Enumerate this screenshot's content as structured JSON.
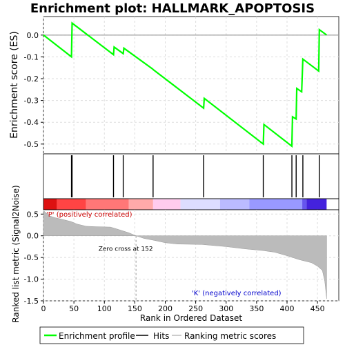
{
  "chart_data": {
    "type": "line",
    "title": "Enrichment plot: HALLMARK_APOPTOSIS",
    "x_label": "Rank in Ordered Dataset",
    "es_panel": {
      "ylabel": "Enrichment score (ES)",
      "ylim": [
        -0.545,
        0.085
      ],
      "yticks": [
        0.0,
        -0.1,
        -0.2,
        -0.3,
        -0.4,
        -0.5
      ],
      "ytick_labels": [
        "0.0",
        "-0.1",
        "-0.2",
        "-0.3",
        "-0.4",
        "-0.5"
      ],
      "grid": true,
      "series": [
        {
          "name": "Enrichment profile",
          "color": "#00ff00",
          "points": [
            [
              0,
              0.0
            ],
            [
              46,
              -0.1
            ],
            [
              47,
              0.055
            ],
            [
              115,
              -0.09
            ],
            [
              116,
              -0.055
            ],
            [
              131,
              -0.085
            ],
            [
              132,
              -0.06
            ],
            [
              179,
              -0.155
            ],
            [
              181,
              -0.16
            ],
            [
              263,
              -0.335
            ],
            [
              264,
              -0.29
            ],
            [
              361,
              -0.5
            ],
            [
              362,
              -0.41
            ],
            [
              408,
              -0.51
            ],
            [
              409,
              -0.375
            ],
            [
              415,
              -0.385
            ],
            [
              416,
              -0.245
            ],
            [
              424,
              -0.26
            ],
            [
              426,
              -0.11
            ],
            [
              452,
              -0.165
            ],
            [
              453,
              0.025
            ],
            [
              465,
              0.0
            ]
          ]
        }
      ]
    },
    "hits": {
      "name": "Hits",
      "positions": [
        46,
        47,
        115,
        131,
        180,
        263,
        361,
        408,
        415,
        426,
        453
      ]
    },
    "ranking_panel": {
      "ylabel": "Ranked list metric (Signal2Noise)",
      "ylim": [
        -1.5,
        0.6
      ],
      "yticks": [
        0.5,
        0.0,
        -0.5,
        -1.0,
        -1.5
      ],
      "ytick_labels": [
        "0.5",
        "0.0",
        "-0.5",
        "-1.0",
        "-1.5"
      ],
      "series_name": "Ranking metric scores",
      "zero_cross_rank": 152,
      "zero_cross_label": "Zero cross at 152",
      "pos_label": "'P' (positively correlated)",
      "neg_label": "'K' (negatively correlated)",
      "profile": [
        [
          0,
          0.58
        ],
        [
          5,
          0.52
        ],
        [
          10,
          0.46
        ],
        [
          18,
          0.42
        ],
        [
          30,
          0.38
        ],
        [
          45,
          0.33
        ],
        [
          55,
          0.27
        ],
        [
          70,
          0.22
        ],
        [
          85,
          0.21
        ],
        [
          110,
          0.2
        ],
        [
          120,
          0.16
        ],
        [
          140,
          0.07
        ],
        [
          152,
          0.0
        ],
        [
          165,
          -0.06
        ],
        [
          180,
          -0.1
        ],
        [
          200,
          -0.16
        ],
        [
          220,
          -0.19
        ],
        [
          260,
          -0.2
        ],
        [
          300,
          -0.25
        ],
        [
          330,
          -0.3
        ],
        [
          360,
          -0.34
        ],
        [
          380,
          -0.38
        ],
        [
          400,
          -0.46
        ],
        [
          420,
          -0.55
        ],
        [
          440,
          -0.62
        ],
        [
          450,
          -0.7
        ],
        [
          458,
          -0.8
        ],
        [
          462,
          -1.05
        ],
        [
          465,
          -1.45
        ]
      ]
    },
    "xlim": [
      0,
      485
    ],
    "xticks": [
      0,
      50,
      100,
      150,
      200,
      250,
      300,
      350,
      400,
      450
    ],
    "xtick_labels": [
      "0",
      "50",
      "100",
      "150",
      "200",
      "250",
      "300",
      "350",
      "400",
      "450"
    ],
    "n_genes": 465,
    "color_bar": {
      "colors": [
        "#dd1111",
        "#ff4444",
        "#ff7777",
        "#ffaaaa",
        "#ffccee",
        "#ddddff",
        "#bbbbff",
        "#9999ff",
        "#6655ee",
        "#4422dd",
        "#2200cc"
      ],
      "bounds": [
        0,
        22,
        70,
        140,
        180,
        225,
        290,
        338,
        425,
        432,
        465
      ]
    },
    "legend": {
      "placement": "bottom",
      "items": [
        {
          "label": "Enrichment profile",
          "color": "#00ff00"
        },
        {
          "label": "Hits",
          "color": "#000000"
        },
        {
          "label": "Ranking metric scores",
          "color": "#bbbbbb"
        }
      ]
    }
  }
}
